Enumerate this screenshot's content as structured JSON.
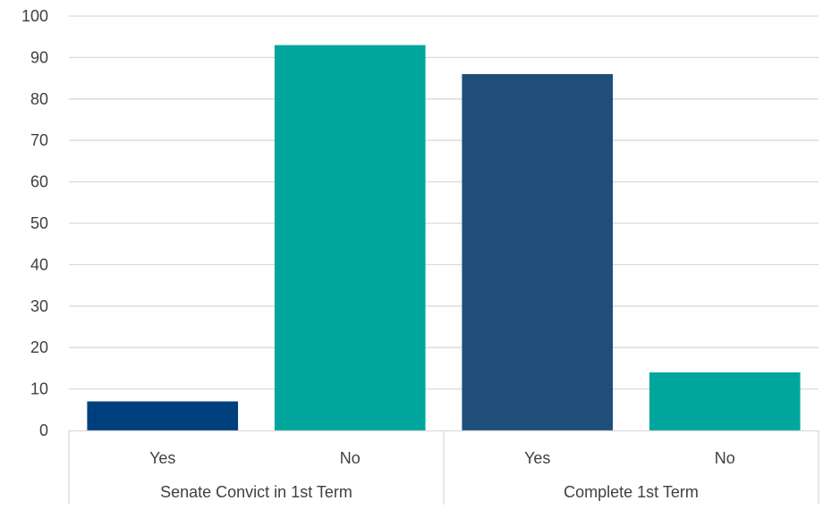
{
  "chart_data": {
    "type": "bar",
    "groups": [
      {
        "label": "Senate Convict in 1st Term",
        "bars": [
          {
            "label": "Yes",
            "value": 7,
            "color": "#003f7d"
          },
          {
            "label": "No",
            "value": 93,
            "color": "#00a69c"
          }
        ]
      },
      {
        "label": "Complete 1st Term",
        "bars": [
          {
            "label": "Yes",
            "value": 86,
            "color": "#1f4e79"
          },
          {
            "label": "No",
            "value": 14,
            "color": "#00a69c"
          }
        ]
      }
    ],
    "ylim": [
      0,
      100
    ],
    "yticks": [
      "0",
      "10",
      "20",
      "30",
      "40",
      "50",
      "60",
      "70",
      "80",
      "90",
      "100"
    ],
    "grid": true,
    "legend": "none"
  }
}
